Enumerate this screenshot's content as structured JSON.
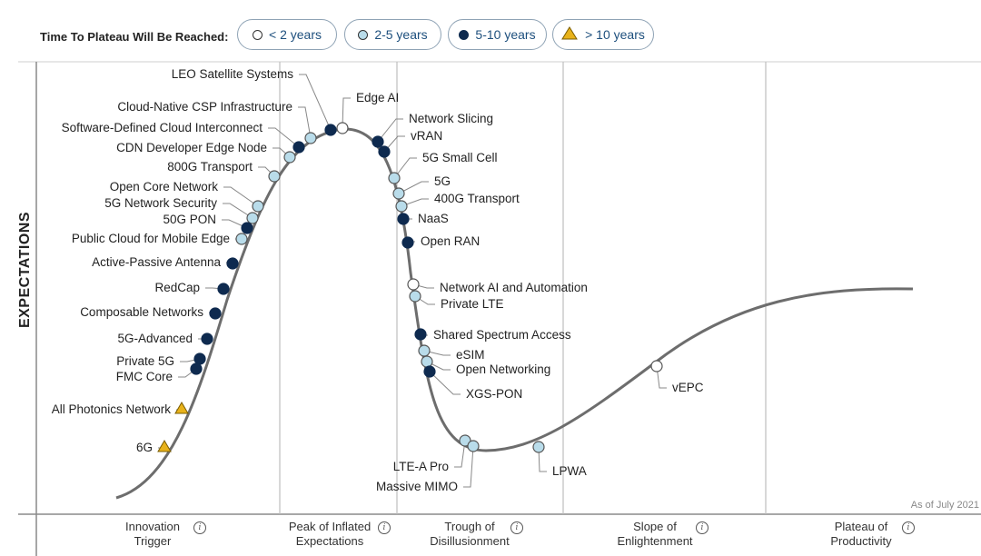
{
  "legend": {
    "title": "Time To Plateau Will Be Reached:",
    "items": [
      {
        "label": "< 2 years",
        "symbol": "circle-white"
      },
      {
        "label": "2-5 years",
        "symbol": "circle-lightblue"
      },
      {
        "label": "5-10 years",
        "symbol": "circle-navy"
      },
      {
        "label": "> 10 years",
        "symbol": "triangle-gold"
      }
    ]
  },
  "colors": {
    "circle-white": "#ffffff",
    "circle-lightblue": "#b9dcea",
    "circle-navy": "#0e2a4f",
    "triangle-gold": "#e8b21a",
    "curve": "#6d6d6d",
    "pill_text": "#1d4f7d"
  },
  "y_axis_label": "EXPECTATIONS",
  "phases": [
    {
      "line1": "Innovation",
      "line2": "Trigger"
    },
    {
      "line1": "Peak of Inflated",
      "line2": "Expectations"
    },
    {
      "line1": "Trough of",
      "line2": "Disillusionment"
    },
    {
      "line1": "Slope of",
      "line2": "Enlightenment"
    },
    {
      "line1": "Plateau of",
      "line2": "Productivity"
    }
  ],
  "as_of": "As of July 2021",
  "chart_data": {
    "type": "scatter",
    "title": "",
    "xlabel": "",
    "ylabel": "EXPECTATIONS",
    "note": "As of July 2021",
    "series": [
      {
        "name": "< 2 years",
        "symbol": "circle-white",
        "points": [
          {
            "label": "Edge AI",
            "t": 0.28
          },
          {
            "label": "Network AI and Automation",
            "t": 0.384
          },
          {
            "label": "vEPC",
            "t": 0.68
          }
        ]
      },
      {
        "name": "2-5 years",
        "symbol": "circle-lightblue",
        "points": [
          {
            "label": "Public Cloud for Mobile Edge",
            "t": 0.15
          },
          {
            "label": "5G Network Security",
            "t": 0.163
          },
          {
            "label": "Open Core Network",
            "t": 0.171
          },
          {
            "label": "800G Transport",
            "t": 0.209
          },
          {
            "label": "CDN Developer Edge Node",
            "t": 0.218
          },
          {
            "label": "Cloud-Native CSP Infrastructure",
            "t": 0.242
          },
          {
            "label": "5G Small Cell",
            "t": 0.35
          },
          {
            "label": "5G",
            "t": 0.355
          },
          {
            "label": "400G Transport",
            "t": 0.36
          },
          {
            "label": "Private LTE",
            "t": 0.387
          },
          {
            "label": "eSIM",
            "t": 0.405
          },
          {
            "label": "Open Networking",
            "t": 0.413
          },
          {
            "label": "LTE-A Pro",
            "t": 0.45
          },
          {
            "label": "Massive MIMO",
            "t": 0.457
          },
          {
            "label": "LPWA",
            "t": 0.52
          }
        ]
      },
      {
        "name": "5-10 years",
        "symbol": "circle-navy",
        "points": [
          {
            "label": "Private 5G",
            "t": 0.11
          },
          {
            "label": "FMC Core",
            "t": 0.107
          },
          {
            "label": "5G-Advanced",
            "t": 0.115
          },
          {
            "label": "Composable Networks",
            "t": 0.123
          },
          {
            "label": "RedCap",
            "t": 0.131
          },
          {
            "label": "Active-Passive Antenna",
            "t": 0.14
          },
          {
            "label": "50G PON",
            "t": 0.155
          },
          {
            "label": "Software-Defined Cloud Interconnect",
            "t": 0.235
          },
          {
            "label": "LEO Satellite Systems",
            "t": 0.252
          },
          {
            "label": "Network Slicing",
            "t": 0.33
          },
          {
            "label": "vRAN",
            "t": 0.338
          },
          {
            "label": "NaaS",
            "t": 0.362
          },
          {
            "label": "Open RAN",
            "t": 0.368
          },
          {
            "label": "Shared Spectrum Access",
            "t": 0.395
          },
          {
            "label": "XGS-PON",
            "t": 0.41
          }
        ]
      },
      {
        "name": "> 10 years",
        "symbol": "triangle-gold",
        "points": [
          {
            "label": "6G",
            "t": 0.06
          },
          {
            "label": "All Photonics Network",
            "t": 0.085
          }
        ]
      }
    ]
  }
}
